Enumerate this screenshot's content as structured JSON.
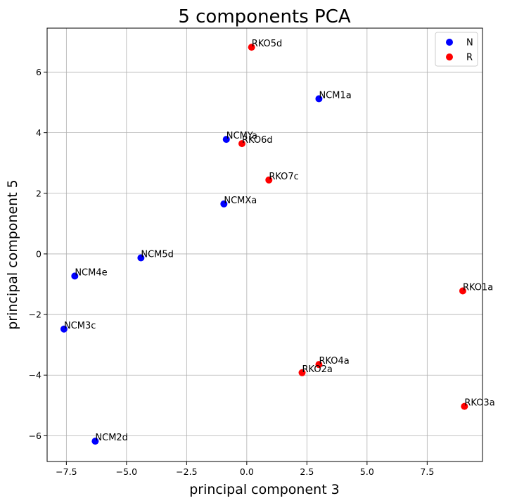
{
  "chart_data": {
    "type": "scatter",
    "title": "5 components PCA",
    "xlabel": "principal component 3",
    "ylabel": "principal component 5",
    "xlim": [
      -8.3,
      9.8
    ],
    "ylim": [
      -6.85,
      7.45
    ],
    "xticks": [
      -7.5,
      -5.0,
      -2.5,
      0.0,
      2.5,
      5.0,
      7.5
    ],
    "xtick_labels": [
      "−7.5",
      "−5.0",
      "−2.5",
      "0.0",
      "2.5",
      "5.0",
      "7.5"
    ],
    "yticks": [
      -6,
      -4,
      -2,
      0,
      2,
      4,
      6
    ],
    "ytick_labels": [
      "−6",
      "−4",
      "−2",
      "0",
      "2",
      "4",
      "6"
    ],
    "grid": true,
    "legend_position": "top-right",
    "series": [
      {
        "name": "N",
        "color": "#0000ff",
        "points": [
          {
            "label": "NCM1a",
            "x": 3.0,
            "y": 5.12
          },
          {
            "label": "NCMYa",
            "x": -0.85,
            "y": 3.78
          },
          {
            "label": "NCMXa",
            "x": -0.95,
            "y": 1.65
          },
          {
            "label": "NCM5d",
            "x": -4.4,
            "y": -0.13
          },
          {
            "label": "NCM4e",
            "x": -7.15,
            "y": -0.73
          },
          {
            "label": "NCM3c",
            "x": -7.6,
            "y": -2.48
          },
          {
            "label": "NCM2d",
            "x": -6.3,
            "y": -6.18
          }
        ]
      },
      {
        "name": "R",
        "color": "#ff0000",
        "points": [
          {
            "label": "RKO5d",
            "x": 0.2,
            "y": 6.82
          },
          {
            "label": "RKO6d",
            "x": -0.2,
            "y": 3.64
          },
          {
            "label": "RKO7c",
            "x": 0.92,
            "y": 2.44
          },
          {
            "label": "RKO1a",
            "x": 8.98,
            "y": -1.22
          },
          {
            "label": "RKO4a",
            "x": 3.0,
            "y": -3.65
          },
          {
            "label": "RKO2a",
            "x": 2.3,
            "y": -3.92
          },
          {
            "label": "RKO3a",
            "x": 9.05,
            "y": -5.03
          }
        ]
      }
    ]
  }
}
